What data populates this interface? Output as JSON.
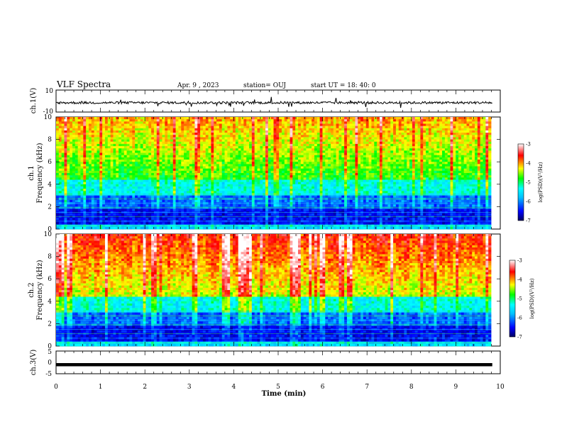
{
  "header": {
    "title": "VLF Spectra",
    "date": "Apr. 9 , 2023",
    "station": "station= OUJ",
    "start": "start UT = 18: 40: 0"
  },
  "chart_data": [
    {
      "type": "line",
      "name": "waveform-ch1",
      "ylabel": "ch.1(V)",
      "ylim": [
        -10,
        10
      ],
      "yticks": [
        "10",
        "-10"
      ],
      "xlim": [
        0,
        10
      ],
      "baseline": -1.5
    },
    {
      "type": "heatmap",
      "name": "spectrogram-ch1",
      "ylabel_line1": "ch.1",
      "ylabel_line2": "Frequency (kHz)",
      "ylim": [
        0,
        10
      ],
      "yticks": [
        "0",
        "2",
        "4",
        "6",
        "8",
        "10"
      ],
      "xlim": [
        0,
        9.82
      ],
      "colorbar": {
        "label": "log(PSD)(V²/Hz)",
        "range": [
          -7,
          -3
        ],
        "ticks": [
          "-3",
          "-4",
          "-5",
          "-6",
          "-7"
        ]
      }
    },
    {
      "type": "heatmap",
      "name": "spectrogram-ch2",
      "ylabel_line1": "ch.2",
      "ylabel_line2": "Frequency (kHz)",
      "ylim": [
        0,
        10
      ],
      "yticks": [
        "0",
        "2",
        "4",
        "6",
        "8",
        "10"
      ],
      "xlim": [
        0,
        9.82
      ],
      "colorbar": {
        "label": "log(PSD)(V²/Hz)",
        "range": [
          -7,
          -3
        ],
        "ticks": [
          "-3",
          "-4",
          "-5",
          "-6",
          "-7"
        ]
      }
    },
    {
      "type": "line",
      "name": "waveform-ch3",
      "ylabel": "ch.3(V)",
      "ylim": [
        -5,
        5
      ],
      "yticks": [
        "5",
        "0",
        "-5"
      ],
      "xlim": [
        0,
        10
      ],
      "baseline": -1
    }
  ],
  "xaxis": {
    "label": "Time (min)",
    "range": [
      0,
      10
    ],
    "ticks": [
      "0",
      "1",
      "2",
      "3",
      "4",
      "5",
      "6",
      "7",
      "8",
      "9",
      "10"
    ]
  },
  "colors": {
    "trace": "#000000",
    "colormap": [
      "#000080",
      "#0000ff",
      "#00ffff",
      "#00ff00",
      "#ffff00",
      "#ff0000",
      "#ffffff"
    ]
  }
}
